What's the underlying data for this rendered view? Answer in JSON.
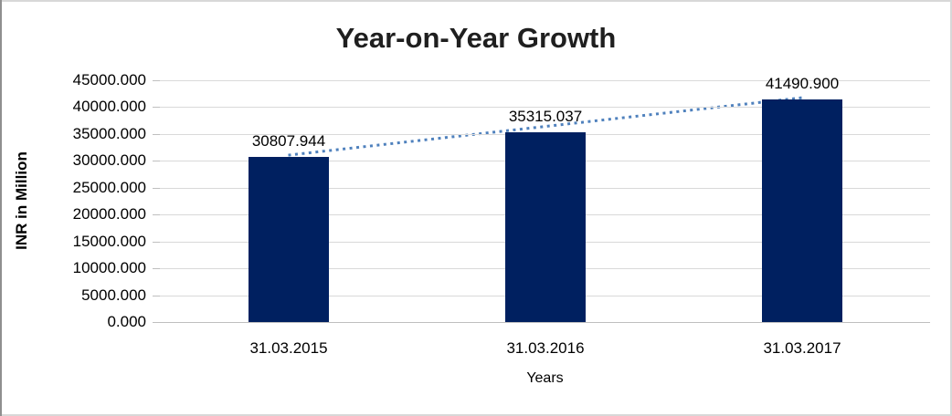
{
  "chart_data": {
    "type": "bar",
    "title": "Year-on-Year Growth",
    "xlabel": "Years",
    "ylabel": "INR in Million",
    "categories": [
      "31.03.2015",
      "31.03.2016",
      "31.03.2017"
    ],
    "values": [
      30807.944,
      35315.037,
      41490.9
    ],
    "data_labels": [
      "30807.944",
      "35315.037",
      "41490.900"
    ],
    "ylim": [
      0,
      45000
    ],
    "ytick_step": 5000,
    "ytick_labels": [
      "0.000",
      "5000.000",
      "10000.000",
      "15000.000",
      "20000.000",
      "25000.000",
      "30000.000",
      "35000.000",
      "40000.000",
      "45000.000"
    ],
    "grid": true,
    "legend": "none",
    "bar_color": "#002060",
    "trendline": {
      "type": "linear",
      "style": "dotted",
      "color": "#4f81bd"
    },
    "colors": {
      "gridline": "#d9d9d9",
      "axis_line": "#bfbfbf",
      "text": "#000000",
      "title_text": "#1f1f1f"
    }
  }
}
